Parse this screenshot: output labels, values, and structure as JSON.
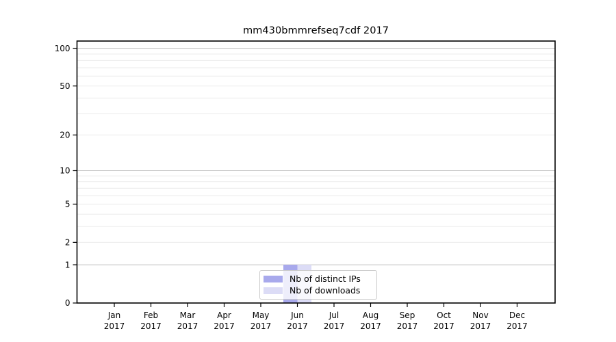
{
  "chart_data": {
    "type": "bar",
    "title": "mm430bmmrefseq7cdf 2017",
    "categories": [
      "Jan",
      "Feb",
      "Mar",
      "Apr",
      "May",
      "Jun",
      "Jul",
      "Aug",
      "Sep",
      "Oct",
      "Nov",
      "Dec"
    ],
    "x_tick_second_line": "2017",
    "series": [
      {
        "name": "Nb of distinct IPs",
        "color": "#a8a9ec",
        "values": [
          0,
          0,
          0,
          0,
          0,
          1,
          0,
          0,
          0,
          0,
          0,
          0
        ]
      },
      {
        "name": "Nb of downloads",
        "color": "#dcdcf6",
        "values": [
          0,
          0,
          0,
          0,
          0,
          1,
          0,
          0,
          0,
          0,
          0,
          0
        ]
      }
    ],
    "y_axis": {
      "scale": "log1p",
      "tick_labels": [
        "0",
        "1",
        "2",
        "5",
        "10",
        "20",
        "50",
        "100"
      ],
      "tick_values": [
        0,
        1,
        2,
        5,
        10,
        20,
        50,
        100
      ],
      "major_gridlines": [
        1,
        10,
        100
      ],
      "minor_gridlines": [
        2,
        3,
        4,
        5,
        6,
        7,
        8,
        9,
        20,
        30,
        40,
        50,
        60,
        70,
        80,
        90
      ],
      "top_value": 114
    },
    "legend": {
      "position": "bottom-center",
      "entries": [
        "Nb of distinct IPs",
        "Nb of downloads"
      ]
    },
    "colors": {
      "major_grid": "#c2c2c2",
      "minor_grid": "#ebebeb",
      "spine": "#000000",
      "text": "#000000"
    }
  }
}
